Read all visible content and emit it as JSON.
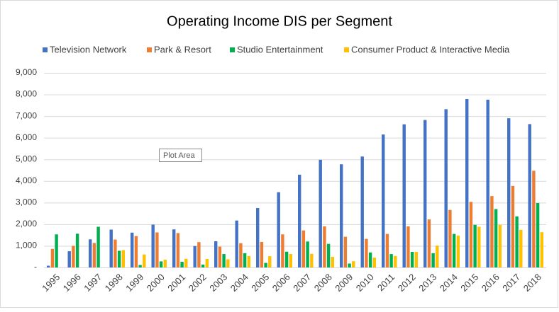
{
  "chart_data": {
    "type": "bar",
    "title": "Operating Income DIS per Segment",
    "categories": [
      "1995",
      "1996",
      "1997",
      "1998",
      "1999",
      "2000",
      "2001",
      "2002",
      "2003",
      "2004",
      "2005",
      "2006",
      "2007",
      "2008",
      "2009",
      "2010",
      "2011",
      "2012",
      "2013",
      "2014",
      "2015",
      "2016",
      "2017",
      "2018"
    ],
    "series": [
      {
        "name": "Television Network",
        "color": "#4472c4",
        "values": [
          80,
          750,
          1300,
          1750,
          1610,
          1980,
          1760,
          990,
          1210,
          2170,
          2750,
          3480,
          4290,
          4980,
          4770,
          5130,
          6150,
          6620,
          6820,
          7320,
          7790,
          7760,
          6900,
          6630
        ]
      },
      {
        "name": "Park & Resort",
        "color": "#ed7d31",
        "values": [
          860,
          1000,
          1130,
          1290,
          1450,
          1620,
          1590,
          1170,
          960,
          1120,
          1180,
          1530,
          1710,
          1900,
          1420,
          1320,
          1550,
          1900,
          2220,
          2660,
          3030,
          3300,
          3770,
          4470
        ]
      },
      {
        "name": "Studio Entertainment",
        "color": "#00b050",
        "values": [
          1530,
          1560,
          1880,
          770,
          110,
          280,
          260,
          130,
          620,
          660,
          210,
          730,
          1200,
          1090,
          180,
          690,
          620,
          720,
          660,
          1550,
          1970,
          2700,
          2360,
          2980
        ]
      },
      {
        "name": "Consumer Product & Interactive Media",
        "color": "#ffc000",
        "values": [
          null,
          null,
          null,
          800,
          600,
          360,
          400,
          390,
          380,
          530,
          520,
          620,
          630,
          490,
          290,
          450,
          530,
          720,
          1010,
          1470,
          1880,
          1970,
          1740,
          1630
        ]
      }
    ],
    "ylim": [
      0,
      9000
    ],
    "yticks": [
      {
        "value": 0,
        "label": "-"
      },
      {
        "value": 1000,
        "label": "1,000"
      },
      {
        "value": 2000,
        "label": "2,000"
      },
      {
        "value": 3000,
        "label": "3,000"
      },
      {
        "value": 4000,
        "label": "4,000"
      },
      {
        "value": 5000,
        "label": "5,000"
      },
      {
        "value": 6000,
        "label": "6,000"
      },
      {
        "value": 7000,
        "label": "7,000"
      },
      {
        "value": 8000,
        "label": "8,000"
      },
      {
        "value": 9000,
        "label": "9,000"
      }
    ],
    "grid": true,
    "legend": "top"
  },
  "tooltip": "Plot Area"
}
